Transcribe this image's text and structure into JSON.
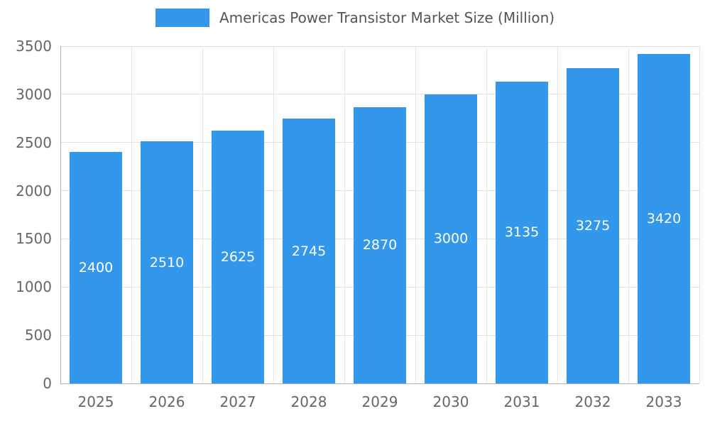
{
  "chart_data": {
    "type": "bar",
    "title": "Americas Power Transistor Market Size (Million)",
    "categories": [
      "2025",
      "2026",
      "2027",
      "2028",
      "2029",
      "2030",
      "2031",
      "2032",
      "2033"
    ],
    "values": [
      2400,
      2510,
      2625,
      2745,
      2870,
      3000,
      3135,
      3275,
      3420
    ],
    "xlabel": "",
    "ylabel": "",
    "ylim": [
      0,
      3500
    ],
    "yticks": [
      0,
      500,
      1000,
      1500,
      2000,
      2500,
      3000,
      3500
    ],
    "grid": "on",
    "legend_position": "top-center",
    "bar_labels_inside": true
  },
  "colors": {
    "bar": "#3398EB",
    "bar_label_text": "#ffffff",
    "axis_text": "#666666",
    "title_text": "#555555",
    "gridline": "#e0e0e0",
    "gridline_vertical": "#e6e6e6",
    "axis_line": "#b0b0b0"
  }
}
